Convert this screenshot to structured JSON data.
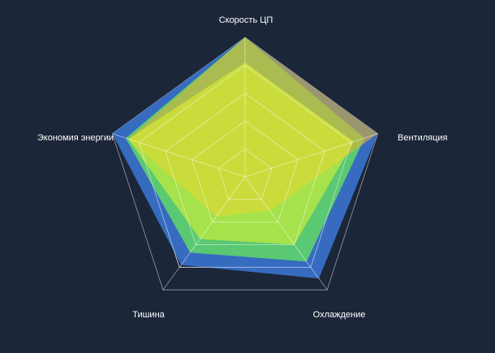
{
  "chart_data": {
    "type": "radar",
    "axes": [
      "Скорость ЦП",
      "Вентиляция",
      "Охлаждение",
      "Тишина",
      "Экономия энергии"
    ],
    "rmax": 100,
    "rings": 5,
    "grid": true,
    "legend": "none",
    "series": [
      {
        "values": [
          100,
          100,
          90,
          78,
          100
        ],
        "color": "#3b78d8",
        "opacity": 0.85
      },
      {
        "values": [
          100,
          90,
          75,
          67,
          90
        ],
        "color": "#5fd36a",
        "opacity": 0.9
      },
      {
        "values": [
          100,
          100,
          30,
          35,
          88
        ],
        "color": "#e0b23a",
        "opacity": 0.6
      },
      {
        "values": [
          82,
          82,
          60,
          55,
          88
        ],
        "color": "#e4f82a",
        "opacity": 0.55
      }
    ]
  }
}
